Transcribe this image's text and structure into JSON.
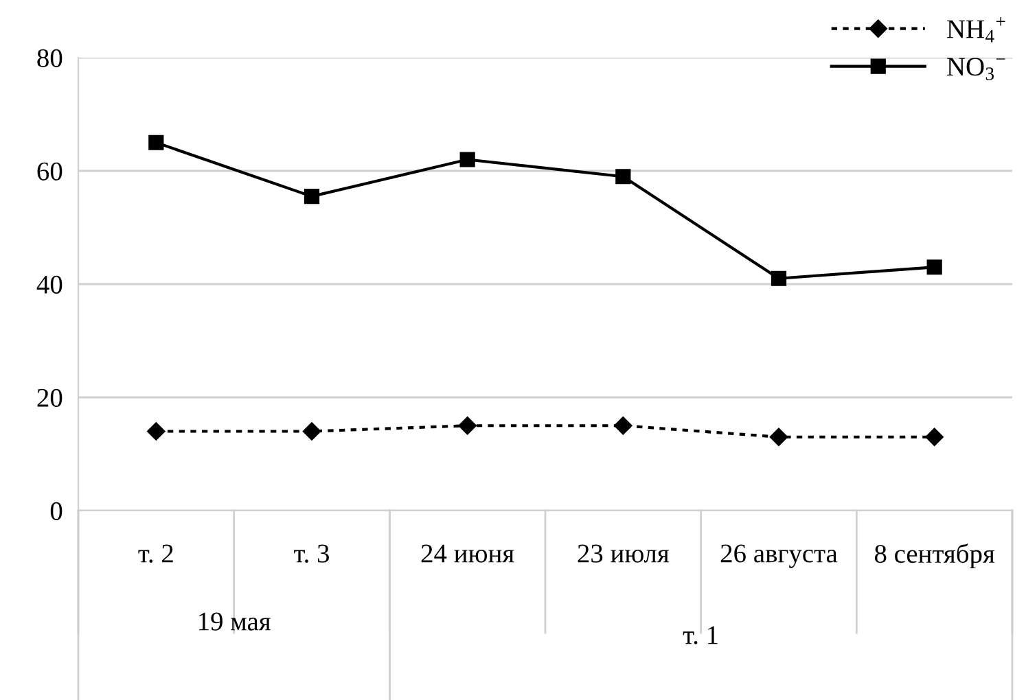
{
  "chart_data": {
    "type": "line",
    "categories": [
      "т. 2",
      "т. 3",
      "24 июня",
      "23 июля",
      "26 августа",
      "8 сентября"
    ],
    "series": [
      {
        "name": "NH$_{4}$$^{+}$",
        "color": "#000000",
        "values": [
          14,
          14,
          15,
          15,
          13,
          13
        ],
        "marker": "diamond",
        "line_style": "dotted"
      },
      {
        "name": "NO$_{3}$$^{−}$",
        "color": "#000000",
        "values": [
          65,
          55.5,
          62,
          59,
          41,
          43
        ],
        "marker": "square",
        "line_style": "solid"
      }
    ],
    "annotations": [
      "19 мая",
      "т. 1"
    ],
    "ylim": [
      0,
      80
    ],
    "yticks": [
      0,
      20,
      40,
      60,
      80
    ],
    "grid": "y",
    "legend": "top right"
  }
}
